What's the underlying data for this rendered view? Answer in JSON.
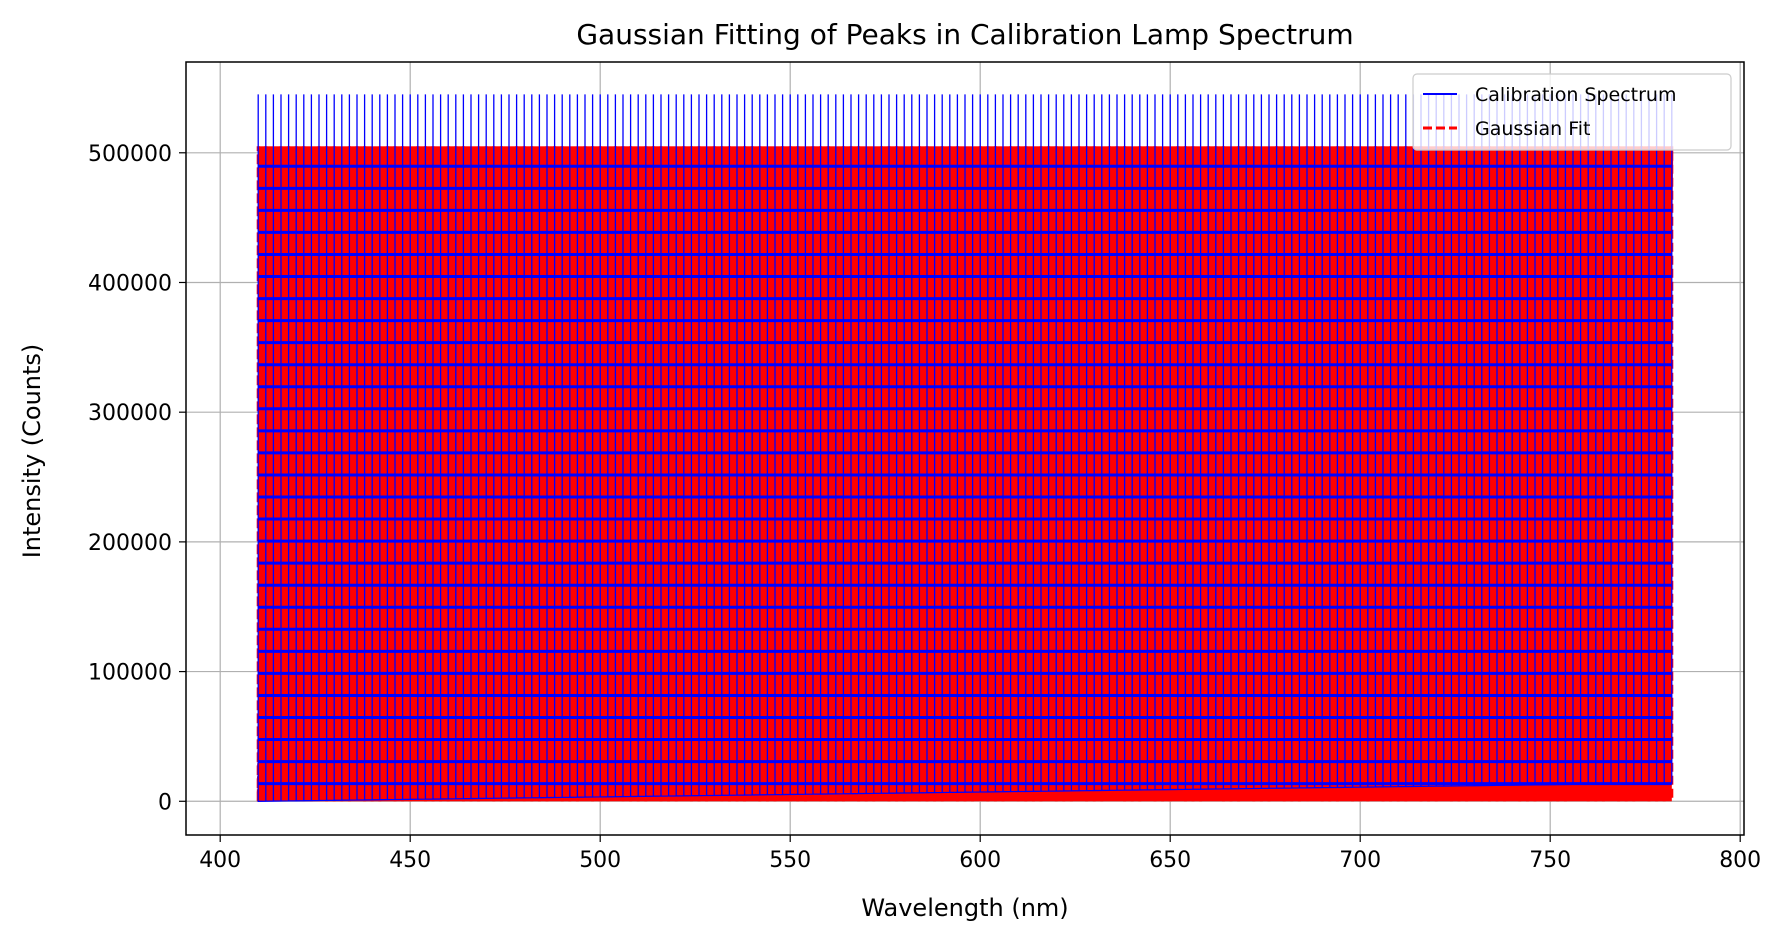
{
  "chart_data": {
    "type": "line",
    "title": "Gaussian Fitting of Peaks in Calibration Lamp Spectrum",
    "xlabel": "Wavelength (nm)",
    "ylabel": "Intensity (Counts)",
    "xlim": [
      391,
      801
    ],
    "ylim": [
      -26000,
      570000
    ],
    "xticks": [
      400,
      450,
      500,
      550,
      600,
      650,
      700,
      750,
      800
    ],
    "yticks": [
      0,
      100000,
      200000,
      300000,
      400000,
      500000
    ],
    "grid": true,
    "legend_position": "top-right",
    "series": [
      {
        "name": "Calibration Spectrum",
        "color": "#0000ff",
        "style": "solid",
        "peak_x_start": 410,
        "peak_x_end": 782,
        "peak_count": 187,
        "peak_height": 545000,
        "baseline_start": 0,
        "baseline_end": 14000
      },
      {
        "name": "Gaussian Fit",
        "color": "#ff0000",
        "style": "dashed",
        "peak_x_start": 410,
        "peak_x_end": 782,
        "peak_count": 187,
        "peak_height": 505000
      }
    ]
  }
}
